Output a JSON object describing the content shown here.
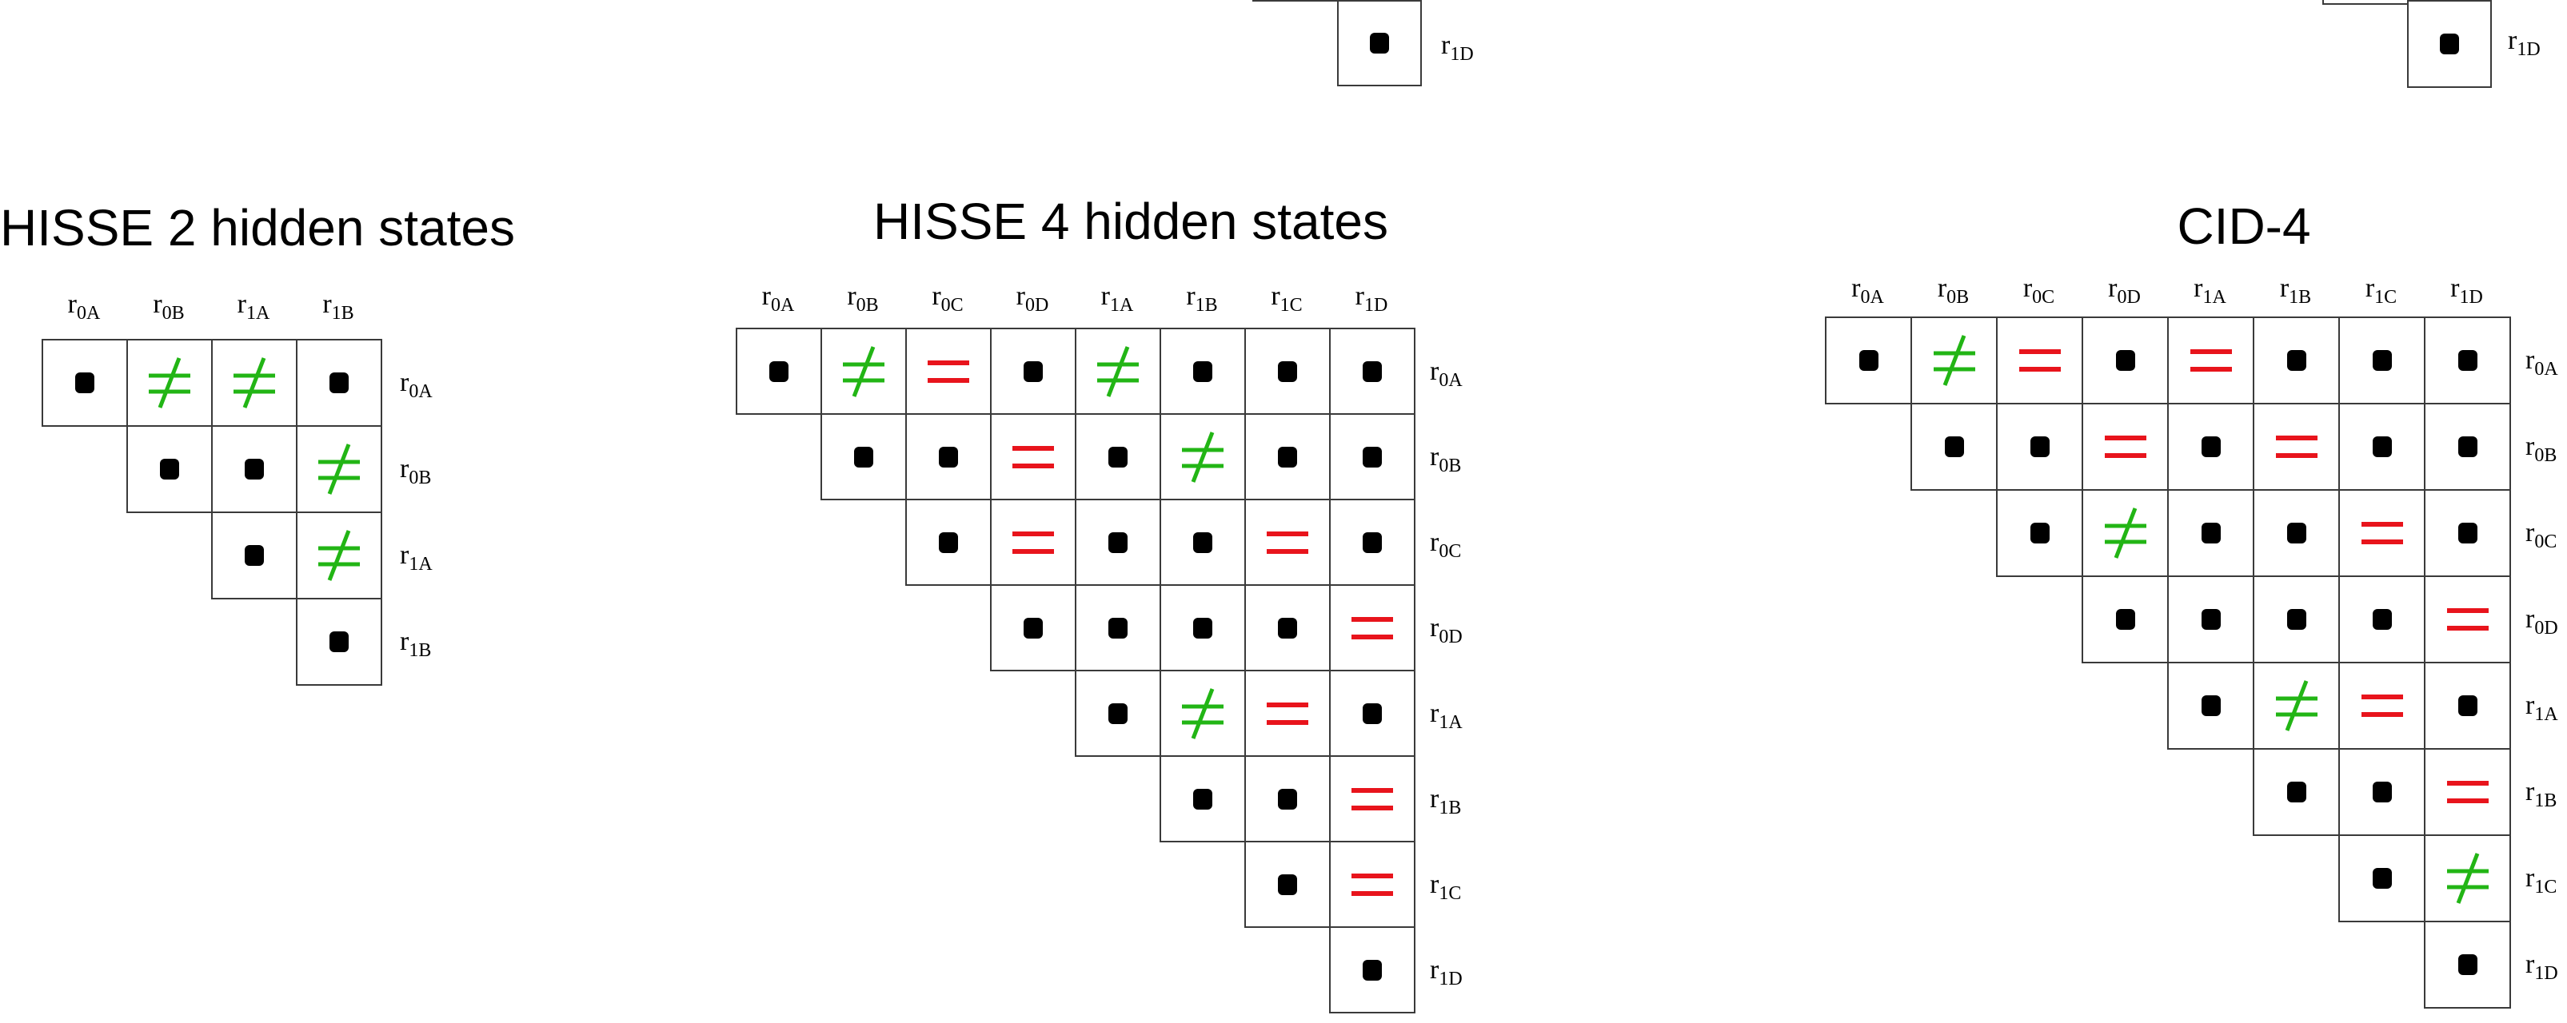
{
  "colors": {
    "equal": "#e8141c",
    "not_equal": "#22b515",
    "dot": "#000000",
    "border": "#3a3a3a"
  },
  "symbols": {
    "dot": "filled-square",
    "equal": "=",
    "not_equal": "≠"
  },
  "top_fragments": [
    {
      "label_base": "r",
      "label_sub": "1D"
    },
    {
      "label_base": "r",
      "label_sub": "1D"
    }
  ],
  "panels": [
    {
      "title": "HISSE 2 hidden states",
      "columns": [
        {
          "base": "r",
          "sub": "0A"
        },
        {
          "base": "r",
          "sub": "0B"
        },
        {
          "base": "r",
          "sub": "1A"
        },
        {
          "base": "r",
          "sub": "1B"
        }
      ],
      "rows": [
        {
          "label": {
            "base": "r",
            "sub": "0A"
          },
          "cells": [
            "dot",
            "neq",
            "neq",
            "dot"
          ]
        },
        {
          "label": {
            "base": "r",
            "sub": "0B"
          },
          "cells": [
            "dot",
            "dot",
            "neq"
          ]
        },
        {
          "label": {
            "base": "r",
            "sub": "1A"
          },
          "cells": [
            "dot",
            "neq"
          ]
        },
        {
          "label": {
            "base": "r",
            "sub": "1B"
          },
          "cells": [
            "dot"
          ]
        }
      ]
    },
    {
      "title": "HISSE 4 hidden states",
      "columns": [
        {
          "base": "r",
          "sub": "0A"
        },
        {
          "base": "r",
          "sub": "0B"
        },
        {
          "base": "r",
          "sub": "0C"
        },
        {
          "base": "r",
          "sub": "0D"
        },
        {
          "base": "r",
          "sub": "1A"
        },
        {
          "base": "r",
          "sub": "1B"
        },
        {
          "base": "r",
          "sub": "1C"
        },
        {
          "base": "r",
          "sub": "1D"
        }
      ],
      "rows": [
        {
          "label": {
            "base": "r",
            "sub": "0A"
          },
          "cells": [
            "dot",
            "neq",
            "eq",
            "dot",
            "neq",
            "dot",
            "dot",
            "dot"
          ]
        },
        {
          "label": {
            "base": "r",
            "sub": "0B"
          },
          "cells": [
            "dot",
            "dot",
            "eq",
            "dot",
            "neq",
            "dot",
            "dot"
          ]
        },
        {
          "label": {
            "base": "r",
            "sub": "0C"
          },
          "cells": [
            "dot",
            "eq",
            "dot",
            "dot",
            "eq",
            "dot"
          ]
        },
        {
          "label": {
            "base": "r",
            "sub": "0D"
          },
          "cells": [
            "dot",
            "dot",
            "dot",
            "dot",
            "eq"
          ]
        },
        {
          "label": {
            "base": "r",
            "sub": "1A"
          },
          "cells": [
            "dot",
            "neq",
            "eq",
            "dot"
          ]
        },
        {
          "label": {
            "base": "r",
            "sub": "1B"
          },
          "cells": [
            "dot",
            "dot",
            "eq"
          ]
        },
        {
          "label": {
            "base": "r",
            "sub": "1C"
          },
          "cells": [
            "dot",
            "eq"
          ]
        },
        {
          "label": {
            "base": "r",
            "sub": "1D"
          },
          "cells": [
            "dot"
          ]
        }
      ]
    },
    {
      "title": "CID-4",
      "columns": [
        {
          "base": "r",
          "sub": "0A"
        },
        {
          "base": "r",
          "sub": "0B"
        },
        {
          "base": "r",
          "sub": "0C"
        },
        {
          "base": "r",
          "sub": "0D"
        },
        {
          "base": "r",
          "sub": "1A"
        },
        {
          "base": "r",
          "sub": "1B"
        },
        {
          "base": "r",
          "sub": "1C"
        },
        {
          "base": "r",
          "sub": "1D"
        }
      ],
      "rows": [
        {
          "label": {
            "base": "r",
            "sub": "0A"
          },
          "cells": [
            "dot",
            "neq",
            "eq",
            "dot",
            "eq",
            "dot",
            "dot",
            "dot"
          ]
        },
        {
          "label": {
            "base": "r",
            "sub": "0B"
          },
          "cells": [
            "dot",
            "dot",
            "eq",
            "dot",
            "eq",
            "dot",
            "dot"
          ]
        },
        {
          "label": {
            "base": "r",
            "sub": "0C"
          },
          "cells": [
            "dot",
            "neq",
            "dot",
            "dot",
            "eq",
            "dot"
          ]
        },
        {
          "label": {
            "base": "r",
            "sub": "0D"
          },
          "cells": [
            "dot",
            "dot",
            "dot",
            "dot",
            "eq"
          ]
        },
        {
          "label": {
            "base": "r",
            "sub": "1A"
          },
          "cells": [
            "dot",
            "neq",
            "eq",
            "dot"
          ]
        },
        {
          "label": {
            "base": "r",
            "sub": "1B"
          },
          "cells": [
            "dot",
            "dot",
            "eq"
          ]
        },
        {
          "label": {
            "base": "r",
            "sub": "1C"
          },
          "cells": [
            "dot",
            "neq"
          ]
        },
        {
          "label": {
            "base": "r",
            "sub": "1D"
          },
          "cells": [
            "dot"
          ]
        }
      ]
    }
  ]
}
